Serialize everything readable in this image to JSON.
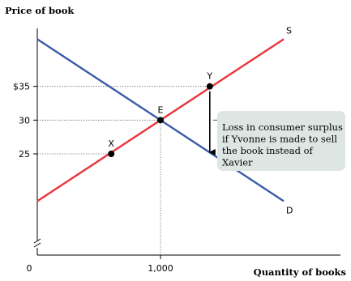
{
  "chart_data": {
    "type": "line",
    "title": "",
    "ylabel": "Price of book",
    "xlabel": "Quantity of books",
    "xlim": [
      0,
      2000
    ],
    "ylim": [
      10,
      43
    ],
    "x_ticks": [
      {
        "value": 0,
        "label": "0"
      },
      {
        "value": 1000,
        "label": "1,000"
      }
    ],
    "y_ticks": [
      {
        "value": 35,
        "label": "$35"
      },
      {
        "value": 30,
        "label": "30"
      },
      {
        "value": 25,
        "label": "25"
      }
    ],
    "axis_break": true,
    "grid": false,
    "series": [
      {
        "name": "S",
        "color": "#e8353b",
        "x": [
          0,
          2000
        ],
        "y": [
          18,
          42
        ]
      },
      {
        "name": "D",
        "color": "#3a5ba9",
        "x": [
          0,
          2000
        ],
        "y": [
          42,
          18
        ]
      }
    ],
    "points": [
      {
        "label": "X",
        "x": 600,
        "y": 25
      },
      {
        "label": "E",
        "x": 1000,
        "y": 30
      },
      {
        "label": "Y",
        "x": 1400,
        "y": 35
      }
    ],
    "reference_lines": [
      {
        "from": [
          0,
          35
        ],
        "to": [
          1400,
          35
        ]
      },
      {
        "from": [
          0,
          30
        ],
        "to": [
          1000,
          30
        ]
      },
      {
        "from": [
          0,
          25
        ],
        "to": [
          600,
          25
        ]
      },
      {
        "from": [
          1000,
          10
        ],
        "to": [
          1000,
          30
        ]
      }
    ],
    "arrow": {
      "x": 1400,
      "y_from": 35,
      "y_to": 25
    },
    "annotation": {
      "lines": [
        "Loss in consumer surplus",
        "if Yvonne is made to sell",
        "the book instead of",
        "Xavier"
      ],
      "background": "#dde6e2"
    }
  }
}
